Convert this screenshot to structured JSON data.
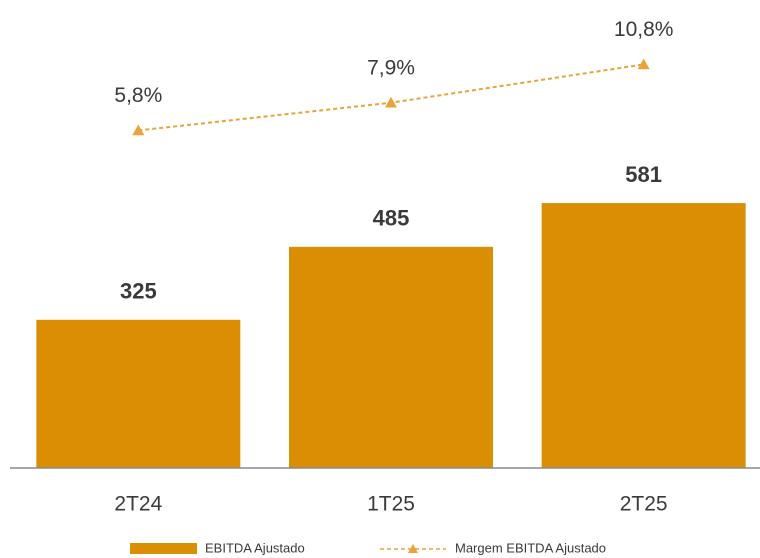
{
  "chart_data": {
    "type": "bar",
    "categories": [
      "2T24",
      "1T25",
      "2T25"
    ],
    "series": [
      {
        "name": "EBITDA Ajustado",
        "color": "#d98e04",
        "values": [
          325,
          485,
          581
        ]
      },
      {
        "name": "Margem EBITDA Ajustado",
        "color": "#e8a33a",
        "axis": "y2",
        "values": [
          5.8,
          7.9,
          10.8
        ],
        "value_labels": [
          "5,8%",
          "7,9%",
          "10,8%"
        ]
      }
    ]
  }
}
